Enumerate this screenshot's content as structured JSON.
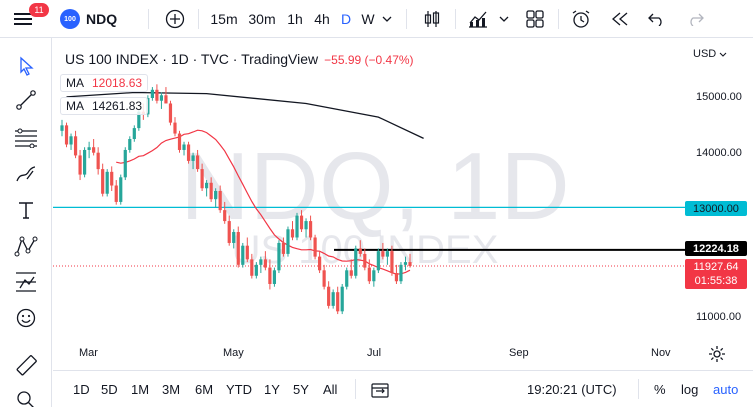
{
  "topbar": {
    "badge": "11",
    "symbol_logo": "100",
    "symbol": "NDQ",
    "timeframes": [
      "15m",
      "30m",
      "1h",
      "4h",
      "D",
      "W"
    ],
    "active_timeframe": "D"
  },
  "legend": {
    "title": "US 100 INDEX · 1D · TVC · TradingView",
    "change": "−55.99 (−0.47%)"
  },
  "ma": [
    {
      "label": "MA",
      "value": "12018.63",
      "color": "#f23645"
    },
    {
      "label": "MA",
      "value": "14261.83",
      "color": "#131722"
    }
  ],
  "watermark": {
    "main": "NDQ, 1D",
    "sub": "US 100 INDEX"
  },
  "price_axis": {
    "currency": "USD",
    "ticks": [
      "15000.00",
      "14000.00",
      "11000.00"
    ],
    "level_13000": "13000.00",
    "level_12224": "12224.18",
    "last_price": "11927.64",
    "countdown": "01:55:38"
  },
  "time_axis": [
    "Mar",
    "May",
    "Jul",
    "Sep",
    "Nov"
  ],
  "bottombar": {
    "ranges": [
      "1D",
      "5D",
      "1M",
      "3M",
      "6M",
      "YTD",
      "1Y",
      "5Y",
      "All"
    ],
    "clock": "19:20:21 (UTC)",
    "percent": "%",
    "log": "log",
    "auto": "auto"
  },
  "chart_data": {
    "type": "candlestick",
    "x_axis": [
      "Mar",
      "May",
      "Jul",
      "Sep",
      "Nov"
    ],
    "y_ticks": [
      15000,
      14000,
      11000
    ],
    "horizontal_lines": [
      13000,
      12224.18
    ],
    "last_price": 11927.64,
    "candles": [
      [
        14400,
        14600,
        14300,
        14500
      ],
      [
        14500,
        14550,
        14100,
        14150
      ],
      [
        14150,
        14350,
        14050,
        14300
      ],
      [
        14300,
        14400,
        13900,
        13950
      ],
      [
        13950,
        14050,
        13500,
        13600
      ],
      [
        13600,
        14100,
        13550,
        14050
      ],
      [
        14050,
        14200,
        13900,
        14100
      ],
      [
        14100,
        14250,
        13950,
        14000
      ],
      [
        14000,
        14100,
        13600,
        13700
      ],
      [
        13700,
        13800,
        13200,
        13250
      ],
      [
        13250,
        13700,
        13200,
        13650
      ],
      [
        13650,
        13750,
        13300,
        13400
      ],
      [
        13400,
        13500,
        13050,
        13100
      ],
      [
        13100,
        13600,
        13050,
        13550
      ],
      [
        13550,
        14100,
        13500,
        14050
      ],
      [
        14050,
        14300,
        14000,
        14250
      ],
      [
        14250,
        14500,
        14200,
        14450
      ],
      [
        14450,
        14800,
        14400,
        14750
      ],
      [
        14750,
        14900,
        14600,
        14700
      ],
      [
        14700,
        15050,
        14650,
        15000
      ],
      [
        15000,
        15200,
        14950,
        15150
      ],
      [
        15150,
        15250,
        14900,
        14950
      ],
      [
        14950,
        15100,
        14800,
        15050
      ],
      [
        15050,
        15200,
        14900,
        14900
      ],
      [
        14900,
        14950,
        14500,
        14550
      ],
      [
        14550,
        14650,
        14300,
        14350
      ],
      [
        14350,
        14400,
        14000,
        14050
      ],
      [
        14050,
        14200,
        13950,
        14150
      ],
      [
        14150,
        14200,
        13800,
        13850
      ],
      [
        13850,
        14000,
        13700,
        13950
      ],
      [
        13950,
        14050,
        13650,
        13700
      ],
      [
        13700,
        13800,
        13300,
        13350
      ],
      [
        13350,
        13500,
        13200,
        13450
      ],
      [
        13450,
        13550,
        13100,
        13150
      ],
      [
        13150,
        13350,
        13000,
        13300
      ],
      [
        13300,
        13400,
        12900,
        12950
      ],
      [
        12950,
        13100,
        12700,
        12750
      ],
      [
        12750,
        12850,
        12300,
        12350
      ],
      [
        12350,
        12600,
        12250,
        12550
      ],
      [
        12550,
        12650,
        11900,
        11950
      ],
      [
        11950,
        12350,
        11900,
        12300
      ],
      [
        12300,
        12450,
        12000,
        12050
      ],
      [
        12050,
        12150,
        11700,
        11750
      ],
      [
        11750,
        12000,
        11700,
        11950
      ],
      [
        11950,
        12100,
        11800,
        12050
      ],
      [
        12050,
        12200,
        11850,
        11900
      ],
      [
        11900,
        12050,
        11500,
        11600
      ],
      [
        11600,
        11900,
        11550,
        11850
      ],
      [
        11850,
        12400,
        11800,
        12350
      ],
      [
        12350,
        12450,
        12100,
        12150
      ],
      [
        12150,
        12650,
        12100,
        12600
      ],
      [
        12600,
        12750,
        12400,
        12450
      ],
      [
        12450,
        12900,
        12400,
        12850
      ],
      [
        12850,
        12950,
        12550,
        12600
      ],
      [
        12600,
        12800,
        12450,
        12750
      ],
      [
        12750,
        12850,
        12400,
        12450
      ],
      [
        12450,
        12500,
        12050,
        12100
      ],
      [
        12100,
        12200,
        11800,
        11850
      ],
      [
        11850,
        11950,
        11500,
        11550
      ],
      [
        11550,
        11650,
        11150,
        11200
      ],
      [
        11200,
        11500,
        11150,
        11450
      ],
      [
        11450,
        11550,
        11050,
        11100
      ],
      [
        11100,
        11600,
        11050,
        11550
      ],
      [
        11550,
        11900,
        11500,
        11850
      ],
      [
        11850,
        12050,
        11700,
        11750
      ],
      [
        11750,
        12300,
        11700,
        12250
      ],
      [
        12250,
        12400,
        12100,
        12150
      ],
      [
        12150,
        12250,
        11850,
        11900
      ],
      [
        11900,
        12050,
        11600,
        11650
      ],
      [
        11650,
        11900,
        11550,
        11850
      ],
      [
        11850,
        12250,
        11800,
        12200
      ],
      [
        12200,
        12350,
        12050,
        12100
      ],
      [
        12100,
        12250,
        11950,
        12200
      ],
      [
        12200,
        12300,
        11750,
        11800
      ],
      [
        11800,
        11950,
        11600,
        11650
      ],
      [
        11650,
        12000,
        11600,
        11950
      ],
      [
        11950,
        12100,
        11850,
        12000
      ],
      [
        12000,
        12150,
        11900,
        11928
      ]
    ]
  }
}
